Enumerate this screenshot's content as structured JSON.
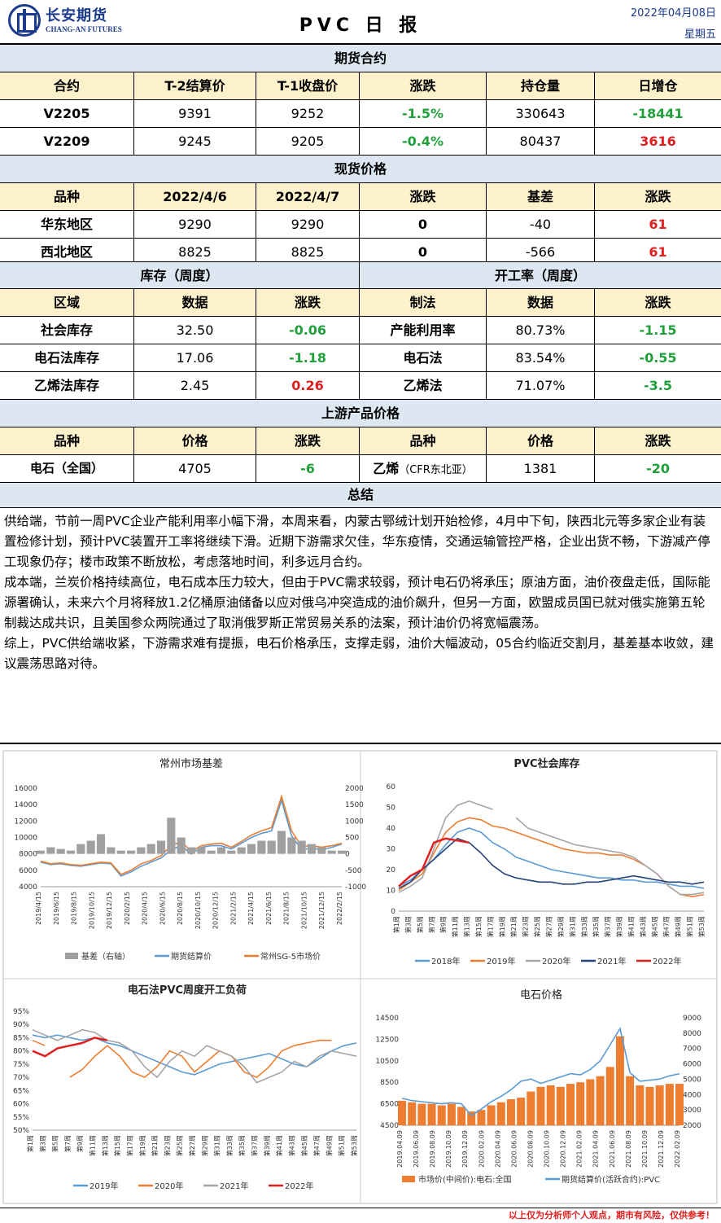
{
  "header": {
    "logo_cn": "长安期货",
    "logo_en": "CHANG-AN FUTURES",
    "title": "PVC 日 报",
    "date": "2022年04月08日",
    "weekday": "星期五"
  },
  "futures": {
    "title": "期货合约",
    "cols": [
      "合约",
      "T-2结算价",
      "T-1收盘价",
      "涨跌",
      "持仓量",
      "日增仓"
    ],
    "rows": [
      {
        "c": "V2205",
        "t2": "9391",
        "t1": "9252",
        "chg": "-1.5%",
        "oi": "330643",
        "add": "-18441"
      },
      {
        "c": "V2209",
        "t2": "9245",
        "t1": "9205",
        "chg": "-0.4%",
        "oi": "80437",
        "add": "3616"
      }
    ]
  },
  "spot": {
    "title": "现货价格",
    "cols": [
      "品种",
      "2022/4/6",
      "2022/4/7",
      "涨跌",
      "基差",
      "涨跌"
    ],
    "rows": [
      {
        "n": "华东地区",
        "a": "9290",
        "b": "9290",
        "chg": "0",
        "basis": "-40",
        "bchg": "61"
      },
      {
        "n": "西北地区",
        "a": "8825",
        "b": "8825",
        "chg": "0",
        "basis": "-566",
        "bchg": "61"
      }
    ]
  },
  "inventory": {
    "title": "库存（周度）",
    "cols": [
      "区域",
      "数据",
      "涨跌"
    ],
    "rows": [
      {
        "n": "社会库存",
        "v": "32.50",
        "chg": "-0.06"
      },
      {
        "n": "电石法库存",
        "v": "17.06",
        "chg": "-1.18"
      },
      {
        "n": "乙烯法库存",
        "v": "2.45",
        "chg": "0.26"
      }
    ]
  },
  "operating": {
    "title": "开工率（周度）",
    "cols": [
      "制法",
      "数据",
      "涨跌"
    ],
    "rows": [
      {
        "n": "产能利用率",
        "v": "80.73%",
        "chg": "-1.15"
      },
      {
        "n": "电石法",
        "v": "83.54%",
        "chg": "-0.55"
      },
      {
        "n": "乙烯法",
        "v": "71.07%",
        "chg": "-3.5"
      }
    ]
  },
  "upstream": {
    "title": "上游产品价格",
    "cols": [
      "品种",
      "价格",
      "涨跌",
      "品种",
      "价格",
      "涨跌"
    ],
    "row": {
      "n1": "电石（全国）",
      "p1": "4705",
      "c1": "-6",
      "n2a": "乙烯",
      "n2b": "（CFR东北亚）",
      "p2": "1381",
      "c2": "-20"
    }
  },
  "summary": {
    "title": "总结",
    "paras": [
      "供给端，节前一周PVC企业产能利用率小幅下滑，本周来看，内蒙古鄂绒计划开始检修，4月中下旬，陕西北元等多家企业有装置检修计划，预计PVC装置开工率将继续下滑。近期下游需求欠佳，华东疫情，交通运输管控严格，企业出货不畅，下游减产停工现象仍存；楼市政策不断放松，考虑落地时间，利多远月合约。",
      "成本端，兰炭价格持续高位，电石成本压力较大，但由于PVC需求较弱，预计电石仍将承压；原油方面，油价夜盘走低，国际能源署确认，未来六个月将释放1.2亿桶原油储备以应对俄乌冲突造成的油价飙升，但另一方面，欧盟成员国已就对俄实施第五轮制裁达成共识，且美国参众两院通过了取消俄罗斯正常贸易关系的法案，预计油价仍将宽幅震荡。",
      "综上，PVC供给端收紧，下游需求难有提振，电石价格承压，支撑走弱，油价大幅波动，05合约临近交割月，基差基本收敛，建议震荡思路对待。"
    ]
  },
  "chart_data": [
    {
      "type": "line",
      "title": "常州市场基差",
      "left_ticks": [
        "16000",
        "14000",
        "12000",
        "10000",
        "8000",
        "6000",
        "4000"
      ],
      "right_ticks": [
        "2000",
        "1500",
        "1000",
        "500",
        "0",
        "-500",
        "-1000"
      ],
      "x_ticks": [
        "2019/4/15",
        "2019/6/15",
        "2019/8/15",
        "2019/10/15",
        "2019/12/15",
        "2020/2/15",
        "2020/4/15",
        "2020/6/15",
        "2020/8/15",
        "2020/10/15",
        "2020/12/15",
        "2021/2/15",
        "2021/4/15",
        "2021/6/15",
        "2021/8/15",
        "2021/10/15",
        "2021/12/15",
        "2022/2/15"
      ],
      "legend": [
        "基差（右轴）",
        "期货结算价",
        "常州SG-5市场价"
      ],
      "series": [
        {
          "name": "期货结算价",
          "color": "#5b9bd5",
          "values": [
            7000,
            6700,
            6800,
            6600,
            6500,
            6700,
            6900,
            6800,
            5300,
            5800,
            6500,
            7000,
            7500,
            8500,
            9000,
            8000,
            8800,
            9000,
            9000,
            8600,
            9300,
            10000,
            10500,
            10800,
            14500,
            10200,
            8500,
            8700,
            8500,
            8800,
            9200
          ]
        },
        {
          "name": "常州SG-5市场价",
          "color": "#ed7d31",
          "values": [
            7100,
            6800,
            6900,
            6700,
            6600,
            6800,
            7000,
            6900,
            5500,
            6000,
            6800,
            7200,
            7800,
            9000,
            9500,
            8300,
            9000,
            9200,
            9300,
            8800,
            9500,
            10300,
            10800,
            11200,
            15000,
            10800,
            8900,
            9000,
            8800,
            9000,
            9300
          ]
        },
        {
          "name": "基差（右轴）",
          "color": "#a0a0a0",
          "values": [
            100,
            200,
            150,
            100,
            300,
            400,
            600,
            200,
            100,
            100,
            200,
            300,
            400,
            1100,
            500,
            200,
            200,
            100,
            200,
            100,
            200,
            300,
            400,
            400,
            700,
            500,
            400,
            300,
            200,
            100,
            100
          ]
        }
      ]
    },
    {
      "type": "line",
      "title": "PVC社会库存",
      "y_ticks": [
        "60",
        "50",
        "40",
        "30",
        "20",
        "10",
        "0"
      ],
      "x_ticks": [
        "第1周",
        "第3周",
        "第5周",
        "第7周",
        "第9周",
        "第11周",
        "第13周",
        "第15周",
        "第17周",
        "第19周",
        "第21周",
        "第23周",
        "第25周",
        "第27周",
        "第29周",
        "第31周",
        "第33周",
        "第35周",
        "第37周",
        "第39周",
        "第41周",
        "第43周",
        "第45周",
        "第47周",
        "第49周",
        "第51周",
        "第53周"
      ],
      "legend": [
        "2018年",
        "2019年",
        "2020年",
        "2021年",
        "2022年"
      ],
      "series": [
        {
          "name": "2018年",
          "color": "#5b9bd5",
          "values": [
            12,
            15,
            20,
            25,
            32,
            38,
            40,
            38,
            33,
            30,
            26,
            24,
            22,
            20,
            19,
            18,
            17,
            16,
            16,
            15,
            15,
            14,
            14,
            13,
            12,
            12,
            11
          ]
        },
        {
          "name": "2019年",
          "color": "#ed7d31",
          "values": [
            10,
            14,
            18,
            28,
            38,
            43,
            45,
            44,
            41,
            40,
            38,
            36,
            34,
            32,
            30,
            29,
            28,
            28,
            27,
            27,
            25,
            22,
            18,
            12,
            8,
            7,
            8
          ]
        },
        {
          "name": "2020年",
          "color": "#a5a5a5",
          "values": [
            9,
            12,
            16,
            30,
            45,
            51,
            53,
            51,
            49,
            null,
            45,
            40,
            38,
            36,
            34,
            32,
            31,
            30,
            29,
            28,
            26,
            22,
            18,
            12,
            8,
            8,
            9
          ]
        },
        {
          "name": "2021年",
          "color": "#264478",
          "values": [
            11,
            14,
            20,
            25,
            30,
            35,
            33,
            28,
            22,
            18,
            16,
            15,
            14,
            14,
            13,
            13,
            14,
            14,
            15,
            16,
            17,
            16,
            15,
            14,
            14,
            13,
            14
          ]
        },
        {
          "name": "2022年",
          "color": "#e02020",
          "values": [
            12,
            17,
            20,
            33,
            35,
            34,
            33
          ]
        }
      ]
    },
    {
      "type": "line",
      "title": "电石法PVC周度开工负荷",
      "y_ticks": [
        "95%",
        "90%",
        "85%",
        "80%",
        "75%",
        "70%",
        "65%",
        "60%",
        "55%",
        "50%"
      ],
      "x_ticks": [
        "第1周",
        "第3周",
        "第5周",
        "第7周",
        "第9周",
        "第11周",
        "第13周",
        "第15周",
        "第17周",
        "第19周",
        "第21周",
        "第23周",
        "第25周",
        "第27周",
        "第29周",
        "第31周",
        "第33周",
        "第35周",
        "第37周",
        "第39周",
        "第41周",
        "第43周",
        "第45周",
        "第47周",
        "第49周",
        "第51周",
        "第53周"
      ],
      "legend": [
        "2019年",
        "2020年",
        "2021年",
        "2022年"
      ],
      "series": [
        {
          "name": "2019年",
          "color": "#5b9bd5",
          "values": [
            86,
            85,
            86,
            85,
            84,
            85,
            83,
            82,
            80,
            78,
            76,
            74,
            72,
            71,
            73,
            75,
            76,
            77,
            78,
            79,
            77,
            75,
            74,
            77,
            80,
            82,
            83
          ]
        },
        {
          "name": "2020年",
          "color": "#ed7d31",
          "values": [
            84,
            82,
            null,
            70,
            73,
            78,
            82,
            78,
            72,
            70,
            74,
            80,
            78,
            72,
            76,
            80,
            78,
            72,
            70,
            74,
            80,
            82,
            83,
            84,
            84,
            null,
            null
          ]
        },
        {
          "name": "2021年",
          "color": "#a5a5a5",
          "values": [
            88,
            86,
            84,
            86,
            88,
            87,
            84,
            83,
            80,
            74,
            70,
            76,
            80,
            78,
            82,
            80,
            78,
            74,
            68,
            70,
            72,
            76,
            74,
            78,
            80,
            79,
            78
          ]
        },
        {
          "name": "2022年",
          "color": "#e02020",
          "values": [
            80,
            78,
            81,
            82,
            83,
            85,
            84
          ]
        }
      ]
    },
    {
      "type": "bar",
      "title": "电石价格",
      "left_ticks": [
        "14500",
        "12500",
        "10500",
        "8500",
        "6500",
        "4500"
      ],
      "right_ticks": [
        "9000",
        "8000",
        "7000",
        "6000",
        "5000",
        "4000",
        "3000",
        "2000"
      ],
      "x_ticks": [
        "2019.04.09",
        "2019.06.09",
        "2019.08.09",
        "2019.10.09",
        "2019.12.09",
        "2020.02.09",
        "2020.04.09",
        "2020.06.09",
        "2020.08.09",
        "2020.10.09",
        "2020.12.09",
        "2021.02.09",
        "2021.04.09",
        "2021.06.09",
        "2021.08.09",
        "2021.10.09",
        "2021.12.09",
        "2022.02.09"
      ],
      "legend": [
        "市场价(中间价):电石:全国",
        "期货结算价(活跃合约):PVC"
      ],
      "series": [
        {
          "name": "市场价(中间价):电石:全国",
          "color": "#ed7d31",
          "values": [
            3600,
            3500,
            3400,
            3400,
            3300,
            3400,
            3200,
            2900,
            3000,
            3300,
            3500,
            3700,
            3800,
            4200,
            4500,
            4600,
            4500,
            4700,
            4800,
            5000,
            5200,
            5800,
            7800,
            5200,
            4600,
            4500,
            4600,
            4700,
            4700
          ]
        },
        {
          "name": "期货结算价(活跃合约):PVC",
          "color": "#5b9bd5",
          "values": [
            7000,
            6800,
            6700,
            6600,
            6500,
            6600,
            6500,
            5400,
            6000,
            6700,
            7200,
            7800,
            8600,
            8800,
            8400,
            8700,
            9000,
            9300,
            9200,
            9700,
            10500,
            12000,
            13500,
            9400,
            8600,
            8700,
            8800,
            9100,
            9300
          ]
        }
      ]
    }
  ],
  "footer": "以上仅为分析师个人观点，期市有风险，仅供参考！"
}
